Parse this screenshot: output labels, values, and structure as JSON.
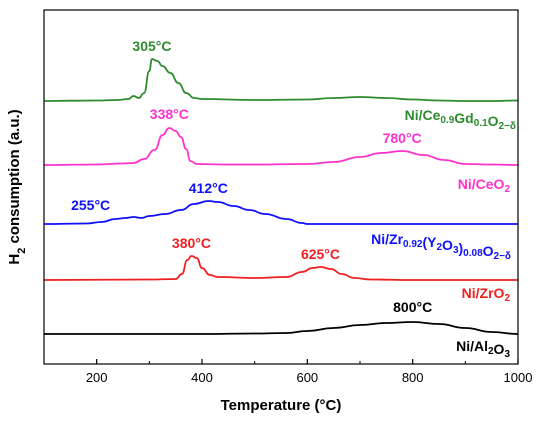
{
  "chart_data": {
    "type": "line",
    "xlabel": "Temperature (°C)",
    "ylabel_main": "H",
    "ylabel_sub": "2",
    "ylabel_rest": " consumption (a.u.)",
    "xlim": [
      100,
      1000
    ],
    "xticks": [
      200,
      400,
      600,
      800,
      1000
    ],
    "grid": false,
    "legend": "none",
    "series": [
      {
        "id": "gdc",
        "color": "#2e8b2e",
        "label": {
          "parts": [
            {
              "t": "Ni/Ce",
              "s": "n"
            },
            {
              "t": "0.9",
              "s": "sub"
            },
            {
              "t": "Gd",
              "s": "n"
            },
            {
              "t": "0.1",
              "s": "sub"
            },
            {
              "t": "O",
              "s": "n"
            },
            {
              "t": "2−δ",
              "s": "sub"
            }
          ]
        },
        "annotations": [
          {
            "text": "305°C",
            "x": 305
          }
        ],
        "points": [
          [
            100,
            0
          ],
          [
            150,
            0.3
          ],
          [
            200,
            0.5
          ],
          [
            240,
            1
          ],
          [
            260,
            2
          ],
          [
            270,
            5
          ],
          [
            280,
            3
          ],
          [
            290,
            8
          ],
          [
            300,
            30
          ],
          [
            305,
            42
          ],
          [
            315,
            40
          ],
          [
            325,
            35
          ],
          [
            340,
            28
          ],
          [
            355,
            18
          ],
          [
            370,
            8
          ],
          [
            385,
            3
          ],
          [
            400,
            2
          ],
          [
            500,
            1
          ],
          [
            600,
            1.5
          ],
          [
            650,
            3
          ],
          [
            700,
            4
          ],
          [
            750,
            3
          ],
          [
            800,
            1.5
          ],
          [
            850,
            0.5
          ],
          [
            900,
            0
          ],
          [
            950,
            0
          ],
          [
            1000,
            0.5
          ]
        ]
      },
      {
        "id": "ceo2",
        "color": "#ff33cc",
        "label": {
          "parts": [
            {
              "t": "Ni/CeO",
              "s": "n"
            },
            {
              "t": "2",
              "s": "sub"
            }
          ]
        },
        "annotations": [
          {
            "text": "338°C",
            "x": 338
          },
          {
            "text": "780°C",
            "x": 780
          }
        ],
        "points": [
          [
            100,
            0
          ],
          [
            200,
            0.5
          ],
          [
            250,
            1.5
          ],
          [
            270,
            2
          ],
          [
            290,
            6
          ],
          [
            310,
            15
          ],
          [
            325,
            30
          ],
          [
            338,
            37
          ],
          [
            350,
            34
          ],
          [
            360,
            28
          ],
          [
            370,
            16
          ],
          [
            378,
            4
          ],
          [
            390,
            1
          ],
          [
            450,
            0.5
          ],
          [
            500,
            0.5
          ],
          [
            600,
            1
          ],
          [
            650,
            3
          ],
          [
            700,
            8
          ],
          [
            740,
            12
          ],
          [
            780,
            14
          ],
          [
            820,
            10
          ],
          [
            860,
            5
          ],
          [
            900,
            1
          ],
          [
            950,
            0.5
          ],
          [
            1000,
            0
          ]
        ]
      },
      {
        "id": "ysz",
        "color": "#1010ff",
        "label": {
          "parts": [
            {
              "t": "Ni/Zr",
              "s": "n"
            },
            {
              "t": "0.92",
              "s": "sub"
            },
            {
              "t": "(Y",
              "s": "n"
            },
            {
              "t": "2",
              "s": "sub"
            },
            {
              "t": "O",
              "s": "n"
            },
            {
              "t": "3",
              "s": "sub"
            },
            {
              "t": ")",
              "s": "n"
            },
            {
              "t": "0.08",
              "s": "sub"
            },
            {
              "t": "O",
              "s": "n"
            },
            {
              "t": "2−δ",
              "s": "sub"
            }
          ]
        },
        "annotations": [
          {
            "text": "255°C",
            "x": 255
          },
          {
            "text": "412°C",
            "x": 412
          }
        ],
        "points": [
          [
            100,
            0
          ],
          [
            180,
            0.5
          ],
          [
            210,
            2
          ],
          [
            235,
            5
          ],
          [
            255,
            6
          ],
          [
            270,
            7
          ],
          [
            285,
            6
          ],
          [
            300,
            8
          ],
          [
            330,
            10
          ],
          [
            360,
            14
          ],
          [
            385,
            20
          ],
          [
            412,
            23
          ],
          [
            430,
            22
          ],
          [
            460,
            18
          ],
          [
            490,
            14
          ],
          [
            520,
            10
          ],
          [
            560,
            5
          ],
          [
            590,
            1
          ],
          [
            600,
            0
          ],
          [
            1000,
            0
          ]
        ]
      },
      {
        "id": "zro2",
        "color": "#ee2020",
        "label": {
          "parts": [
            {
              "t": "Ni/ZrO",
              "s": "n"
            },
            {
              "t": "2",
              "s": "sub"
            }
          ]
        },
        "annotations": [
          {
            "text": "380°C",
            "x": 380
          },
          {
            "text": "625°C",
            "x": 625
          }
        ],
        "points": [
          [
            100,
            0
          ],
          [
            300,
            0.5
          ],
          [
            350,
            1
          ],
          [
            362,
            6
          ],
          [
            372,
            20
          ],
          [
            380,
            24
          ],
          [
            390,
            22
          ],
          [
            400,
            12
          ],
          [
            415,
            5
          ],
          [
            430,
            3
          ],
          [
            500,
            2
          ],
          [
            560,
            3
          ],
          [
            590,
            8
          ],
          [
            610,
            12
          ],
          [
            625,
            13
          ],
          [
            645,
            11
          ],
          [
            665,
            6
          ],
          [
            690,
            2
          ],
          [
            720,
            0.5
          ],
          [
            800,
            0
          ],
          [
            1000,
            0
          ]
        ]
      },
      {
        "id": "al2o3",
        "color": "#000000",
        "label": {
          "parts": [
            {
              "t": "Ni/Al",
              "s": "n"
            },
            {
              "t": "2",
              "s": "sub"
            },
            {
              "t": "O",
              "s": "n"
            },
            {
              "t": "3",
              "s": "sub"
            }
          ]
        },
        "annotations": [
          {
            "text": "800°C",
            "x": 800
          }
        ],
        "points": [
          [
            100,
            0
          ],
          [
            400,
            0
          ],
          [
            500,
            0.5
          ],
          [
            560,
            1
          ],
          [
            600,
            3
          ],
          [
            650,
            6
          ],
          [
            700,
            9
          ],
          [
            750,
            11
          ],
          [
            800,
            12
          ],
          [
            850,
            10
          ],
          [
            900,
            6
          ],
          [
            950,
            2
          ],
          [
            1000,
            0
          ]
        ]
      }
    ]
  }
}
